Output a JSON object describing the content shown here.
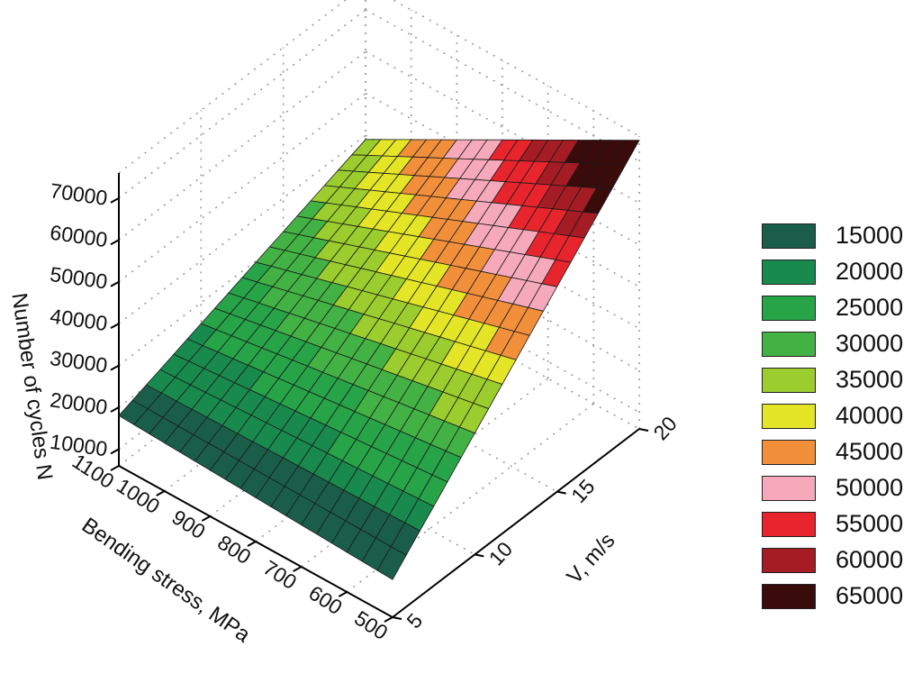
{
  "chart_data": {
    "type": "surface",
    "zlabel": "Number of cycles N",
    "xlabel": "Bending stress, MPa",
    "ylabel": "V, m/s",
    "x_ticks": [
      "1100",
      "1000",
      "900",
      "800",
      "700",
      "600",
      "500"
    ],
    "y_ticks": [
      "5",
      "10",
      "15",
      "20"
    ],
    "z_ticks": [
      "10000",
      "20000",
      "30000",
      "40000",
      "50000",
      "60000",
      "70000"
    ],
    "xlim": [
      500,
      1100
    ],
    "ylim": [
      5,
      20
    ],
    "zlim": [
      6000,
      76000
    ],
    "surface_corners": [
      {
        "bending_stress": 1100,
        "v": 5,
        "n": 18000
      },
      {
        "bending_stress": 500,
        "v": 5,
        "n": 15000
      },
      {
        "bending_stress": 1100,
        "v": 20,
        "n": 39000
      },
      {
        "bending_stress": 500,
        "v": 20,
        "n": 75000
      }
    ],
    "legend": [
      {
        "label": "15000",
        "color": "#1a5e49"
      },
      {
        "label": "20000",
        "color": "#198a4e"
      },
      {
        "label": "25000",
        "color": "#27a348"
      },
      {
        "label": "30000",
        "color": "#43b244"
      },
      {
        "label": "35000",
        "color": "#9acd2d"
      },
      {
        "label": "40000",
        "color": "#e3e526"
      },
      {
        "label": "45000",
        "color": "#f28f3b"
      },
      {
        "label": "50000",
        "color": "#f5a9bb"
      },
      {
        "label": "55000",
        "color": "#e8252d"
      },
      {
        "label": "60000",
        "color": "#a51c24"
      },
      {
        "label": "65000",
        "color": "#3a0b0b"
      }
    ]
  }
}
